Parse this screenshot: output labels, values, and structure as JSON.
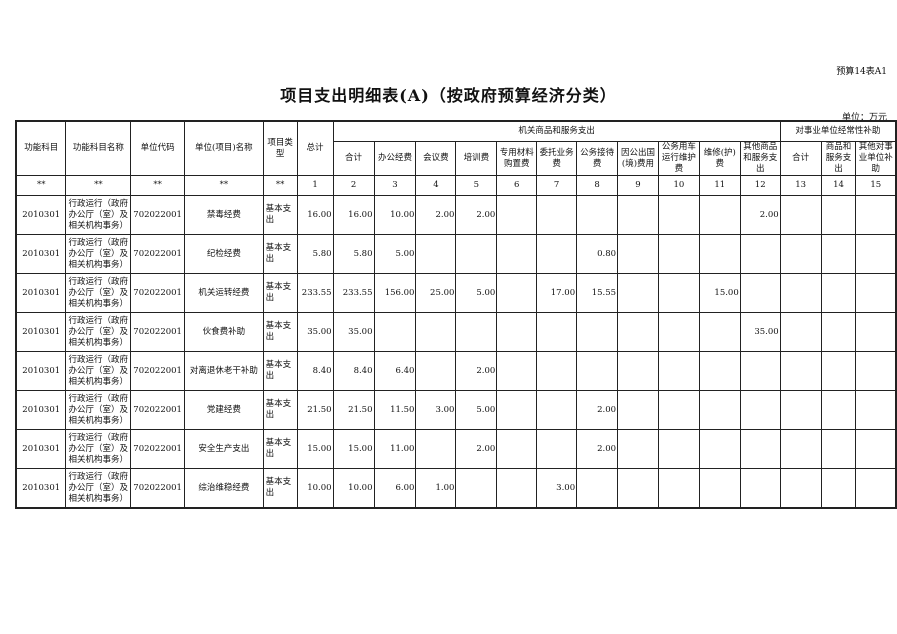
{
  "table_no": "预算14表A1",
  "title": "项目支出明细表(A)（按政府预算经济分类）",
  "unit": "单位：万元",
  "headers": {
    "func_code": "功能科目",
    "func_name": "功能科目名称",
    "unit_code": "单位代码",
    "unit_name": "单位(项目)名称",
    "proj_type": "项目类型",
    "total": "总计",
    "group1": "机关商品和服务支出",
    "group2": "对事业单位经常性补助",
    "g1_cols": [
      "合计",
      "办公经费",
      "会议费",
      "培训费",
      "专用材料购置费",
      "委托业务费",
      "公务接待费",
      "因公出国(境)费用",
      "公务用车运行维护费",
      "维修(护)费",
      "其他商品和服务支出"
    ],
    "g2_cols": [
      "合计",
      "商品和服务支出",
      "其他对事业单位补助"
    ]
  },
  "code_row": [
    "**",
    "**",
    "**",
    "**",
    "**",
    "1",
    "2",
    "3",
    "4",
    "5",
    "6",
    "7",
    "8",
    "9",
    "10",
    "11",
    "12",
    "13",
    "14",
    "15"
  ],
  "rows": [
    {
      "func_code": "2010301",
      "func_name": "行政运行（政府办公厅（室）及相关机构事务）",
      "unit_code": "702022001",
      "unit_name": "禁毒经费",
      "proj_type": "基本支出",
      "values": [
        "16.00",
        "16.00",
        "10.00",
        "2.00",
        "2.00",
        "",
        "",
        "",
        "",
        "",
        "",
        "2.00",
        "",
        "",
        ""
      ]
    },
    {
      "func_code": "2010301",
      "func_name": "行政运行（政府办公厅（室）及相关机构事务）",
      "unit_code": "702022001",
      "unit_name": "纪检经费",
      "proj_type": "基本支出",
      "values": [
        "5.80",
        "5.80",
        "5.00",
        "",
        "",
        "",
        "",
        "0.80",
        "",
        "",
        "",
        "",
        "",
        "",
        ""
      ]
    },
    {
      "func_code": "2010301",
      "func_name": "行政运行（政府办公厅（室）及相关机构事务）",
      "unit_code": "702022001",
      "unit_name": "机关运转经费",
      "proj_type": "基本支出",
      "values": [
        "233.55",
        "233.55",
        "156.00",
        "25.00",
        "5.00",
        "",
        "17.00",
        "15.55",
        "",
        "",
        "15.00",
        "",
        "",
        "",
        ""
      ]
    },
    {
      "func_code": "2010301",
      "func_name": "行政运行（政府办公厅（室）及相关机构事务）",
      "unit_code": "702022001",
      "unit_name": "伙食费补助",
      "proj_type": "基本支出",
      "values": [
        "35.00",
        "35.00",
        "",
        "",
        "",
        "",
        "",
        "",
        "",
        "",
        "",
        "35.00",
        "",
        "",
        ""
      ]
    },
    {
      "func_code": "2010301",
      "func_name": "行政运行（政府办公厅（室）及相关机构事务）",
      "unit_code": "702022001",
      "unit_name": "对离退休老干补助",
      "proj_type": "基本支出",
      "values": [
        "8.40",
        "8.40",
        "6.40",
        "",
        "2.00",
        "",
        "",
        "",
        "",
        "",
        "",
        "",
        "",
        "",
        ""
      ]
    },
    {
      "func_code": "2010301",
      "func_name": "行政运行（政府办公厅（室）及相关机构事务）",
      "unit_code": "702022001",
      "unit_name": "党建经费",
      "proj_type": "基本支出",
      "values": [
        "21.50",
        "21.50",
        "11.50",
        "3.00",
        "5.00",
        "",
        "",
        "2.00",
        "",
        "",
        "",
        "",
        "",
        "",
        ""
      ]
    },
    {
      "func_code": "2010301",
      "func_name": "行政运行（政府办公厅（室）及相关机构事务）",
      "unit_code": "702022001",
      "unit_name": "安全生产支出",
      "proj_type": "基本支出",
      "values": [
        "15.00",
        "15.00",
        "11.00",
        "",
        "2.00",
        "",
        "",
        "2.00",
        "",
        "",
        "",
        "",
        "",
        "",
        ""
      ]
    },
    {
      "func_code": "2010301",
      "func_name": "行政运行（政府办公厅（室）及相关机构事务）",
      "unit_code": "702022001",
      "unit_name": "综治维稳经费",
      "proj_type": "基本支出",
      "values": [
        "10.00",
        "10.00",
        "6.00",
        "1.00",
        "",
        "",
        "3.00",
        "",
        "",
        "",
        "",
        "",
        "",
        "",
        ""
      ]
    }
  ]
}
